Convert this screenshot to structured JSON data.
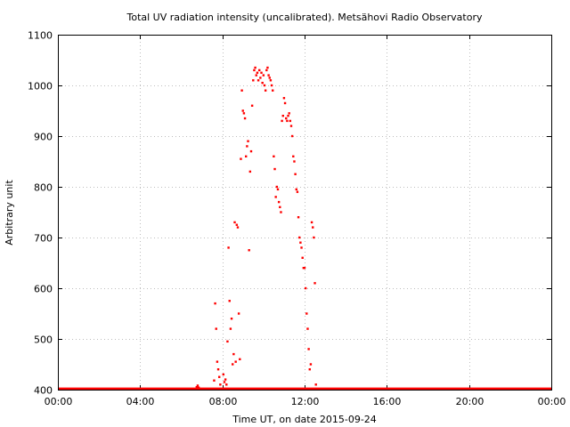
{
  "chart_data": {
    "type": "scatter",
    "title": "Total UV radiation intensity (uncalibrated). Metsähovi Radio Observatory",
    "xlabel": "Time UT, on date 2015-09-24",
    "ylabel": "Arbitrary unit",
    "x_unit": "hours UT",
    "xlim": [
      0,
      24
    ],
    "ylim": [
      400,
      1100
    ],
    "x_ticks": [
      0,
      4,
      8,
      12,
      16,
      20,
      24
    ],
    "x_tick_labels": [
      "00:00",
      "04:00",
      "08:00",
      "12:00",
      "16:00",
      "20:00",
      "00:00"
    ],
    "y_ticks": [
      400,
      500,
      600,
      700,
      800,
      900,
      1000,
      1100
    ],
    "y_tick_labels": [
      "400",
      "500",
      "600",
      "700",
      "800",
      "900",
      "1000",
      "1100"
    ],
    "grid": true,
    "legend": "none",
    "series": [
      {
        "color": "#ff0000",
        "baseline": {
          "y": 402,
          "x_from": 0,
          "x_to": 24
        },
        "x": [
          6.75,
          6.8,
          6.85,
          7.6,
          7.65,
          7.7,
          7.75,
          7.8,
          7.85,
          7.9,
          8.05,
          8.1,
          8.15,
          8.2,
          8.25,
          8.3,
          8.35,
          8.4,
          8.45,
          8.5,
          8.55,
          8.6,
          8.65,
          8.7,
          8.75,
          8.8,
          8.85,
          8.9,
          8.95,
          9.0,
          9.05,
          9.1,
          9.15,
          9.2,
          9.25,
          9.3,
          9.35,
          9.4,
          9.45,
          9.5,
          9.55,
          9.6,
          9.65,
          9.7,
          9.75,
          9.8,
          9.85,
          9.9,
          9.95,
          10.0,
          10.05,
          10.1,
          10.15,
          10.2,
          10.25,
          10.3,
          10.35,
          10.4,
          10.45,
          10.5,
          10.55,
          10.6,
          10.65,
          10.7,
          10.75,
          10.8,
          10.85,
          10.9,
          10.95,
          11.0,
          11.05,
          11.1,
          11.15,
          11.2,
          11.25,
          11.3,
          11.35,
          11.4,
          11.45,
          11.5,
          11.55,
          11.6,
          11.65,
          11.7,
          11.75,
          11.8,
          11.85,
          11.9,
          11.95,
          12.0,
          12.05,
          12.1,
          12.15,
          12.2,
          12.25,
          12.3,
          12.35,
          12.4,
          12.45,
          12.5,
          12.55
        ],
        "y": [
          405,
          408,
          404,
          418,
          570,
          520,
          455,
          440,
          425,
          410,
          430,
          415,
          420,
          410,
          495,
          680,
          575,
          520,
          540,
          450,
          470,
          730,
          455,
          725,
          720,
          550,
          460,
          855,
          990,
          950,
          945,
          935,
          860,
          880,
          890,
          675,
          830,
          870,
          960,
          1010,
          1030,
          1035,
          1020,
          1025,
          1010,
          1030,
          1015,
          1025,
          1005,
          1020,
          1000,
          990,
          1030,
          1035,
          1020,
          1015,
          1010,
          1000,
          990,
          860,
          835,
          780,
          800,
          795,
          770,
          760,
          750,
          930,
          940,
          975,
          965,
          935,
          930,
          940,
          945,
          930,
          920,
          900,
          860,
          850,
          825,
          795,
          790,
          740,
          700,
          690,
          680,
          660,
          640,
          640,
          600,
          550,
          520,
          480,
          440,
          450,
          730,
          720,
          700,
          610,
          410
        ]
      }
    ]
  }
}
